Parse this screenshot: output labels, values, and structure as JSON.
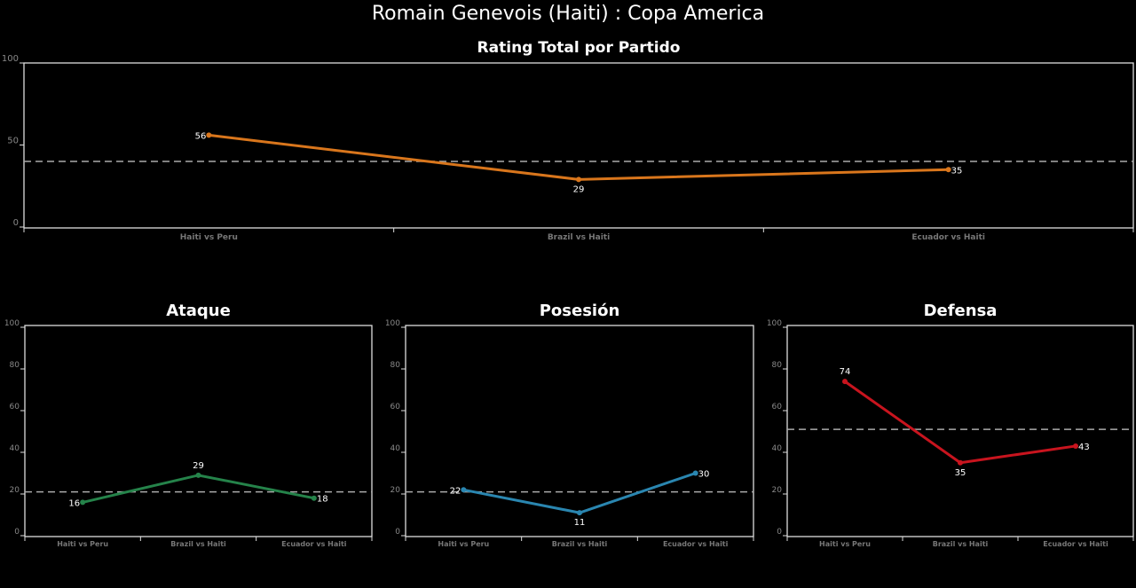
{
  "title": "Romain Genevois (Haiti) :  Copa  America",
  "chart_data": [
    {
      "type": "line",
      "title": "Rating Total por Partido",
      "categories": [
        "Haiti vs Peru",
        "Brazil vs Haiti",
        "Ecuador vs Haiti"
      ],
      "values": [
        56,
        29,
        35
      ],
      "average_line": 40,
      "ylim": [
        0,
        100
      ],
      "yticks": [
        0,
        50,
        100
      ],
      "color": "#d9761c",
      "grid": false
    },
    {
      "type": "line",
      "title": "Ataque",
      "categories": [
        "Haiti vs Peru",
        "Brazil vs Haiti",
        "Ecuador vs Haiti"
      ],
      "values": [
        16,
        29,
        18
      ],
      "average_line": 21,
      "ylim": [
        0,
        100
      ],
      "yticks": [
        0,
        20,
        40,
        60,
        80,
        100
      ],
      "color": "#25834a",
      "grid": false
    },
    {
      "type": "line",
      "title": "Posesión",
      "categories": [
        "Haiti vs Peru",
        "Brazil vs Haiti",
        "Ecuador vs Haiti"
      ],
      "values": [
        22,
        11,
        30
      ],
      "average_line": 21,
      "ylim": [
        0,
        100
      ],
      "yticks": [
        0,
        20,
        40,
        60,
        80,
        100
      ],
      "color": "#2a86b0",
      "grid": false
    },
    {
      "type": "line",
      "title": "Defensa",
      "categories": [
        "Haiti vs Peru",
        "Brazil vs Haiti",
        "Ecuador vs Haiti"
      ],
      "values": [
        74,
        35,
        43
      ],
      "average_line": 51,
      "ylim": [
        0,
        100
      ],
      "yticks": [
        0,
        20,
        40,
        60,
        80,
        100
      ],
      "color": "#c8141e",
      "grid": false
    }
  ]
}
